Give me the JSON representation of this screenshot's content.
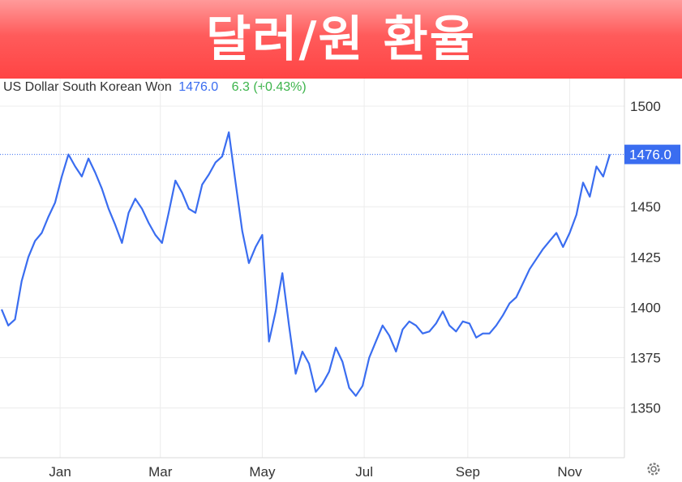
{
  "banner": {
    "title": "달러/원 환율"
  },
  "header": {
    "instrument": "US Dollar South Korean Won",
    "price": "1476.0",
    "change": "6.3 (+0.43%)"
  },
  "colors": {
    "line": "#3a6df0",
    "positive": "#3cb44b",
    "banner": "#ff4444"
  },
  "chart_data": {
    "type": "line",
    "title": "",
    "xlabel": "",
    "ylabel": "",
    "ylim": [
      1325,
      1510
    ],
    "grid": true,
    "y_axis_position": "right",
    "y_ticks": [
      1500,
      1450,
      1425,
      1400,
      1375,
      1350
    ],
    "x_ticks": [
      "Jan",
      "Mar",
      "May",
      "Jul",
      "Sep",
      "Nov"
    ],
    "last_value": 1476.0,
    "last_value_label": "1476.0",
    "series": [
      {
        "name": "",
        "x": [
          "2023-11-27",
          "2023-12-01",
          "2023-12-05",
          "2023-12-09",
          "2023-12-13",
          "2023-12-17",
          "2023-12-21",
          "2023-12-25",
          "2023-12-29",
          "2024-01-02",
          "2024-01-06",
          "2024-01-10",
          "2024-01-14",
          "2024-01-18",
          "2024-01-22",
          "2024-01-26",
          "2024-01-30",
          "2024-02-03",
          "2024-02-07",
          "2024-02-11",
          "2024-02-15",
          "2024-02-19",
          "2024-02-23",
          "2024-02-27",
          "2024-03-02",
          "2024-03-06",
          "2024-03-10",
          "2024-03-14",
          "2024-03-18",
          "2024-03-22",
          "2024-03-26",
          "2024-03-30",
          "2024-04-03",
          "2024-04-07",
          "2024-04-11",
          "2024-04-15",
          "2024-04-19",
          "2024-04-23",
          "2024-04-27",
          "2024-05-01",
          "2024-05-05",
          "2024-05-09",
          "2024-05-13",
          "2024-05-17",
          "2024-05-21",
          "2024-05-25",
          "2024-05-29",
          "2024-06-02",
          "2024-06-06",
          "2024-06-10",
          "2024-06-14",
          "2024-06-18",
          "2024-06-22",
          "2024-06-26",
          "2024-06-30",
          "2024-07-04",
          "2024-07-08",
          "2024-07-12",
          "2024-07-16",
          "2024-07-20",
          "2024-07-24",
          "2024-07-28",
          "2024-08-01",
          "2024-08-05",
          "2024-08-09",
          "2024-08-13",
          "2024-08-17",
          "2024-08-21",
          "2024-08-25",
          "2024-08-29",
          "2024-09-02",
          "2024-09-06",
          "2024-09-10",
          "2024-09-14",
          "2024-09-18",
          "2024-09-22",
          "2024-09-26",
          "2024-09-30",
          "2024-10-04",
          "2024-10-08",
          "2024-10-12",
          "2024-10-16",
          "2024-10-20",
          "2024-10-24",
          "2024-10-28",
          "2024-11-01",
          "2024-11-05",
          "2024-11-09",
          "2024-11-13",
          "2024-11-17",
          "2024-11-21",
          "2024-11-25"
        ],
        "values": [
          1399,
          1391,
          1394,
          1413,
          1425,
          1433,
          1437,
          1445,
          1452,
          1465,
          1476,
          1470,
          1465,
          1474,
          1467,
          1459,
          1449,
          1441,
          1432,
          1447,
          1454,
          1449,
          1442,
          1436,
          1432,
          1447,
          1463,
          1457,
          1449,
          1447,
          1461,
          1466,
          1472,
          1475,
          1487,
          1462,
          1438,
          1422,
          1430,
          1436,
          1383,
          1398,
          1417,
          1391,
          1367,
          1378,
          1372,
          1358,
          1362,
          1368,
          1380,
          1373,
          1360,
          1356,
          1361,
          1375,
          1383,
          1391,
          1386,
          1378,
          1389,
          1393,
          1391,
          1387,
          1388,
          1392,
          1398,
          1391,
          1388,
          1393,
          1392,
          1385,
          1387,
          1387,
          1391,
          1396,
          1402,
          1405,
          1412,
          1419,
          1424,
          1429,
          1433,
          1437,
          1430,
          1437,
          1446,
          1462,
          1455,
          1470,
          1465,
          1476
        ]
      }
    ]
  }
}
